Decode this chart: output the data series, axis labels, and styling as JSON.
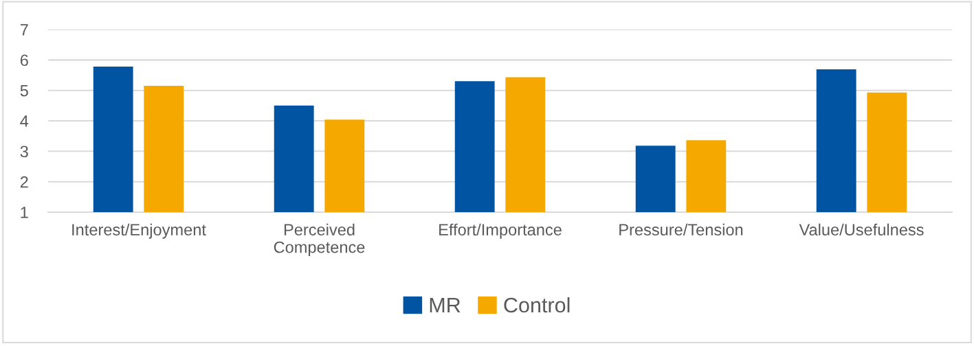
{
  "chart_data": {
    "type": "bar",
    "categories": [
      "Interest/Enjoyment",
      "Perceived\nCompetence",
      "Effort/Importance",
      "Pressure/Tension",
      "Value/Usefulness"
    ],
    "series": [
      {
        "name": "MR",
        "color": "#0054a1",
        "values": [
          5.78,
          4.5,
          5.3,
          3.18,
          5.69
        ]
      },
      {
        "name": "Control",
        "color": "#f5a800",
        "values": [
          5.15,
          4.04,
          5.43,
          3.36,
          4.93
        ]
      }
    ],
    "ylim": [
      1,
      7
    ],
    "yticks": [
      1,
      2,
      3,
      4,
      5,
      6,
      7
    ],
    "grid": "y",
    "legend": "bottom"
  }
}
